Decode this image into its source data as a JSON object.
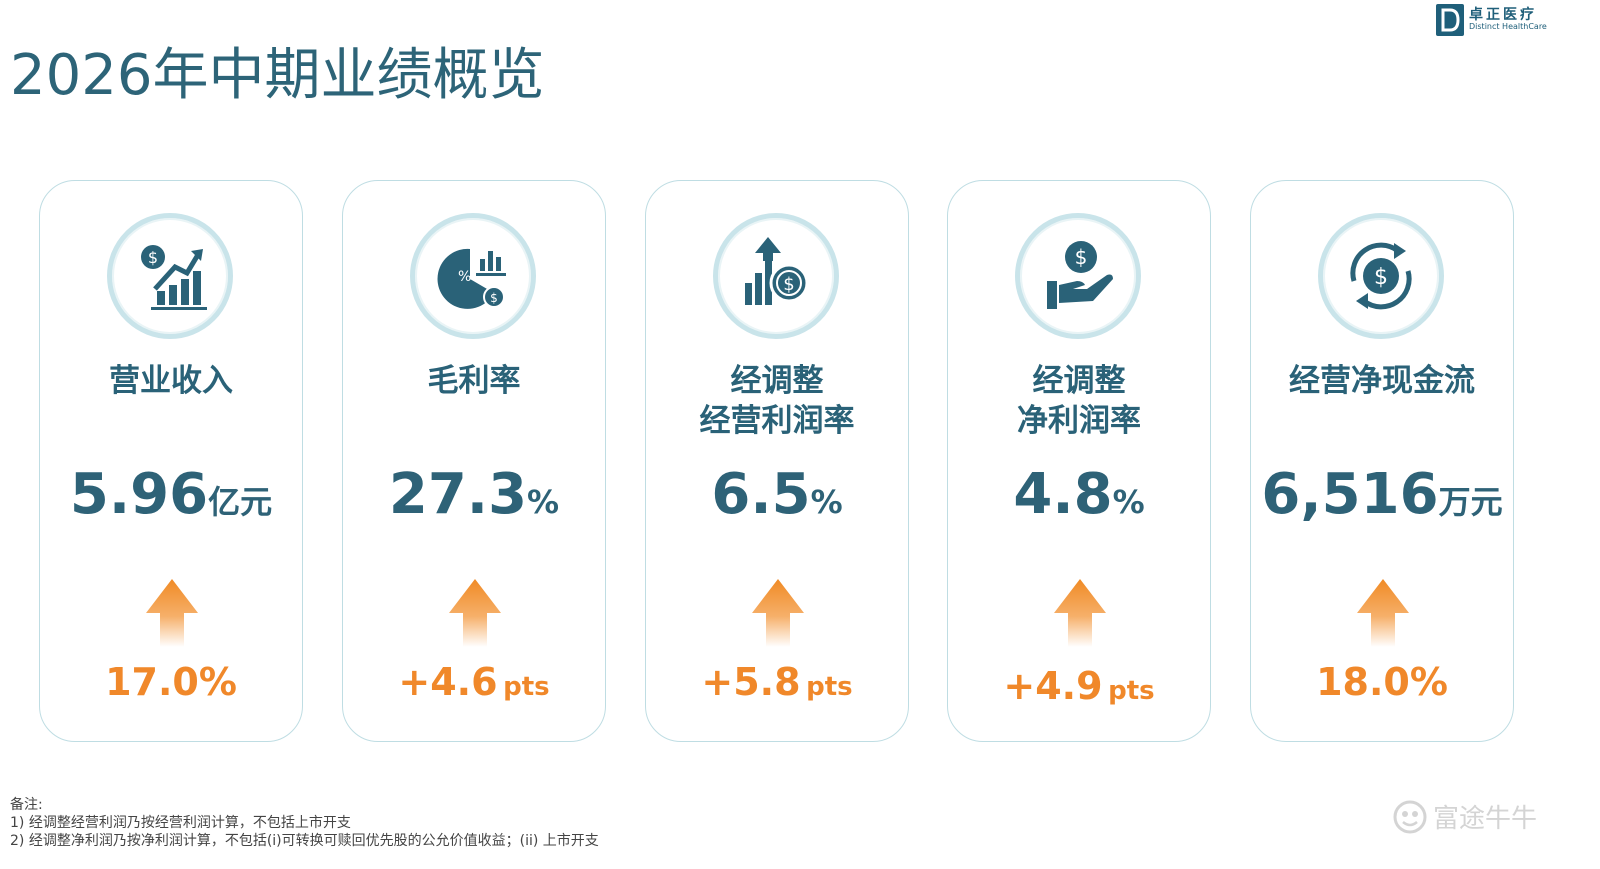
{
  "page": {
    "title": "2026年中期业绩概览"
  },
  "logo": {
    "name_cn": "卓正医疗",
    "name_en": "Distinct HealthCare",
    "mark_letter": "D"
  },
  "metrics": [
    {
      "label": "营业收入",
      "value": "5.96",
      "unit": "亿元",
      "change": "17.0%",
      "change_unit": "",
      "icon": "revenue-growth-icon",
      "trend": "up"
    },
    {
      "label": "毛利率",
      "value": "27.3",
      "unit": "%",
      "change": "+4.6",
      "change_unit": "pts",
      "icon": "pie-chart-icon",
      "trend": "up"
    },
    {
      "label": "经调整\n经营利润率",
      "value": "6.5",
      "unit": "%",
      "change": "+5.8",
      "change_unit": "pts",
      "icon": "profit-bars-icon",
      "trend": "up"
    },
    {
      "label": "经调整\n净利润率",
      "value": "4.8",
      "unit": "%",
      "change": "+4.9",
      "change_unit": "pts",
      "icon": "hand-coin-icon",
      "trend": "up"
    },
    {
      "label": "经营净现金流",
      "value": "6,516",
      "unit": "万元",
      "change": "18.0%",
      "change_unit": "",
      "icon": "cash-cycle-icon",
      "trend": "up"
    }
  ],
  "notes": {
    "heading": "备注:",
    "lines": [
      "1) 经调整经营利润乃按经营利润计算，不包括上市开支",
      "2) 经调整净利润乃按净利润计算，不包括(i)可转换可赎回优先股的公允价值收益；(ii) 上市开支"
    ]
  },
  "watermark": {
    "text": "富途牛牛"
  },
  "colors": {
    "primary": "#2a6278",
    "accent": "#f0882a",
    "card_border": "#bfdde3"
  }
}
